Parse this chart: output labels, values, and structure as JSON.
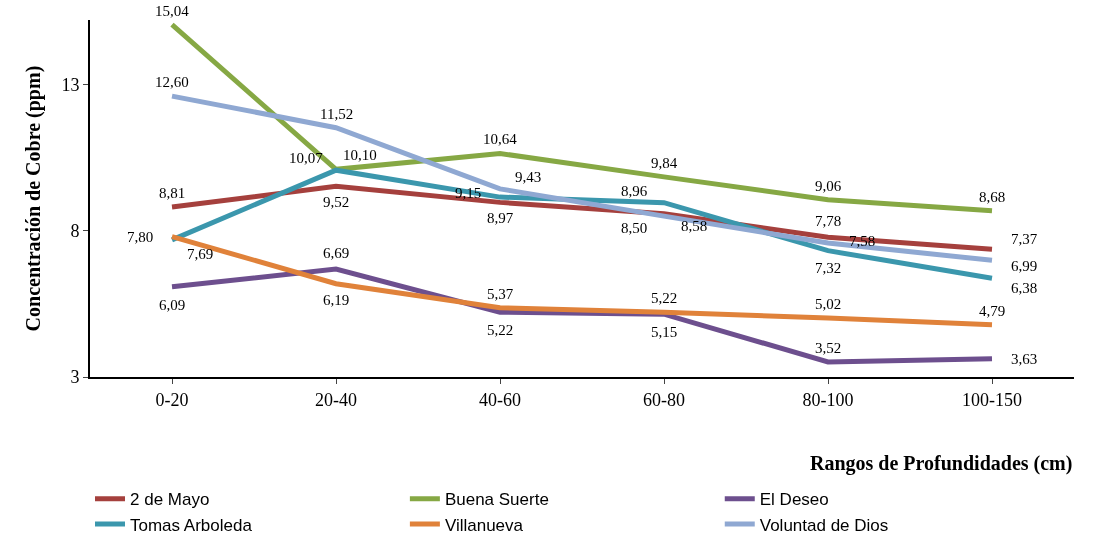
{
  "chart_data": {
    "type": "line",
    "xlabel": "Rangos de Profundidades (cm)",
    "ylabel": "Concentración de Cobre (ppm)",
    "categories": [
      "0-20",
      "20-40",
      "40-60",
      "60-80",
      "80-100",
      "100-150"
    ],
    "series": [
      {
        "name": "2 de Mayo",
        "color": "#a5403d",
        "values": [
          8.81,
          9.52,
          8.97,
          8.58,
          7.78,
          7.37
        ],
        "value_labels": [
          "8,81",
          "9,52",
          "8,97",
          "8,58",
          "7,78",
          "7,37"
        ]
      },
      {
        "name": "Buena Suerte",
        "color": "#86a844",
        "values": [
          15.04,
          10.1,
          10.64,
          9.84,
          9.06,
          8.68
        ],
        "value_labels": [
          "15,04",
          "10,10",
          "10,64",
          "9,84",
          "9,06",
          "8,68"
        ]
      },
      {
        "name": "El Deseo",
        "color": "#6d4f8e",
        "values": [
          6.09,
          6.69,
          5.22,
          5.15,
          3.52,
          3.63
        ],
        "value_labels": [
          "6,09",
          "6,69",
          "5,22",
          "5,15",
          "3,52",
          "3,63"
        ]
      },
      {
        "name": "Tomas Arboleda",
        "color": "#3b97ad",
        "values": [
          7.69,
          10.07,
          9.15,
          8.96,
          7.32,
          6.38
        ],
        "value_labels": [
          "7,69",
          "10,07",
          "9,15",
          "8,96",
          "7,32",
          "6,38"
        ]
      },
      {
        "name": "Villanueva",
        "color": "#e0823a",
        "values": [
          7.8,
          6.19,
          5.37,
          5.22,
          5.02,
          4.79
        ],
        "value_labels": [
          "7,80",
          "6,19",
          "5,37",
          "5,22",
          "5,02",
          "4,79"
        ]
      },
      {
        "name": "Voluntad de Dios",
        "color": "#8fa8d2",
        "values": [
          12.6,
          11.52,
          9.43,
          8.5,
          7.58,
          6.99
        ],
        "value_labels": [
          "12,60",
          "11,52",
          "9,43",
          "8,50",
          "7,58",
          "6,99"
        ]
      }
    ],
    "ylim": [
      3,
      15.2
    ],
    "yticks": [
      3,
      8,
      13
    ],
    "grid": false,
    "legend": "bottom",
    "marker": "none",
    "line_style": "solid"
  }
}
